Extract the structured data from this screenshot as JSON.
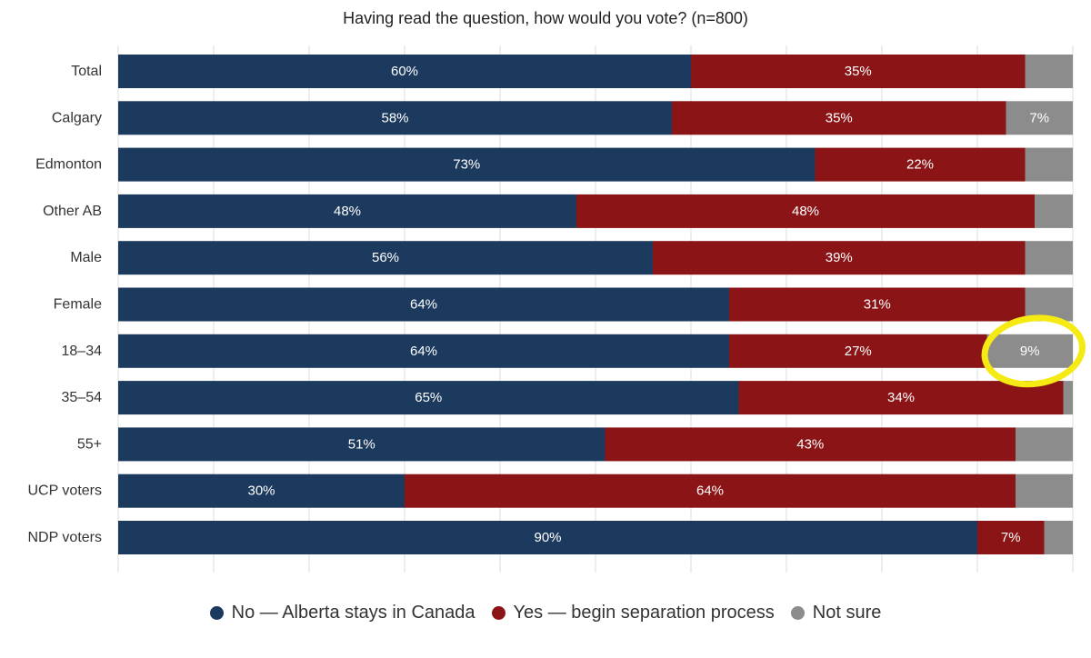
{
  "chart_data": {
    "type": "bar",
    "orientation": "horizontal",
    "stacked": true,
    "title": "Having read the question, how would you vote? (n=800)",
    "xlim": [
      0,
      100
    ],
    "grid": true,
    "legend_position": "bottom-center",
    "categories": [
      "Total",
      "Calgary",
      "Edmonton",
      "Other AB",
      "Male",
      "Female",
      "18–34",
      "35–54",
      "55+",
      "UCP voters",
      "NDP voters"
    ],
    "series": [
      {
        "name": "No — Alberta stays in Canada",
        "color": "#1c3a5e",
        "values": [
          60,
          58,
          73,
          48,
          56,
          64,
          64,
          65,
          51,
          30,
          90
        ],
        "labels": [
          "60%",
          "58%",
          "73%",
          "48%",
          "56%",
          "64%",
          "64%",
          "65%",
          "51%",
          "30%",
          "90%"
        ]
      },
      {
        "name": "Yes — begin separation process",
        "color": "#8b1416",
        "values": [
          35,
          35,
          22,
          48,
          39,
          31,
          27,
          34,
          43,
          64,
          7
        ],
        "labels": [
          "35%",
          "35%",
          "22%",
          "48%",
          "39%",
          "31%",
          "27%",
          "34%",
          "43%",
          "64%",
          "7%"
        ]
      },
      {
        "name": "Not sure",
        "color": "#8c8c8c",
        "values": [
          5,
          7,
          5,
          4,
          5,
          5,
          9,
          1,
          6,
          6,
          3
        ],
        "labels": [
          "",
          "7%",
          "",
          "",
          "",
          "",
          "9%",
          "",
          "",
          "",
          ""
        ]
      }
    ],
    "annotation": {
      "category": "18–34",
      "series": "Not sure",
      "shape": "yellow-circle-highlight",
      "color": "#f5ea14"
    }
  }
}
